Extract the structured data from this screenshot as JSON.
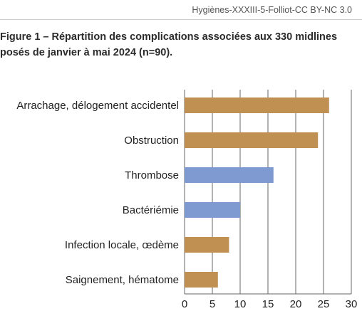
{
  "header": {
    "credit": "Hygiènes-XXXIII-5-Folliot-CC BY-NC 3.0"
  },
  "figure": {
    "title_line1": "Figure 1 – Répartition des complications associées aux 330 midlines",
    "title_line2": "posés de janvier à mai 2024 (n=90)."
  },
  "colors": {
    "tan": "#c08f52",
    "blue": "#7f9ad0",
    "axis": "#666666"
  },
  "chart_data": {
    "type": "bar",
    "orientation": "horizontal",
    "categories": [
      "Arrachage, délogement accidentel",
      "Obstruction",
      "Thrombose",
      "Bactériémie",
      "Infection locale, œdème",
      "Saignement, hématome"
    ],
    "values": [
      26,
      24,
      16,
      10,
      8,
      6
    ],
    "bar_colors": [
      "tan",
      "tan",
      "blue",
      "blue",
      "tan",
      "tan"
    ],
    "xlim": [
      0,
      30
    ],
    "xticks": [
      0,
      5,
      10,
      15,
      20,
      25,
      30
    ],
    "grid": true,
    "title": "Figure 1 – Répartition des complications associées aux 330 midlines posés de janvier à mai 2024 (n=90).",
    "xlabel": "",
    "ylabel": ""
  }
}
